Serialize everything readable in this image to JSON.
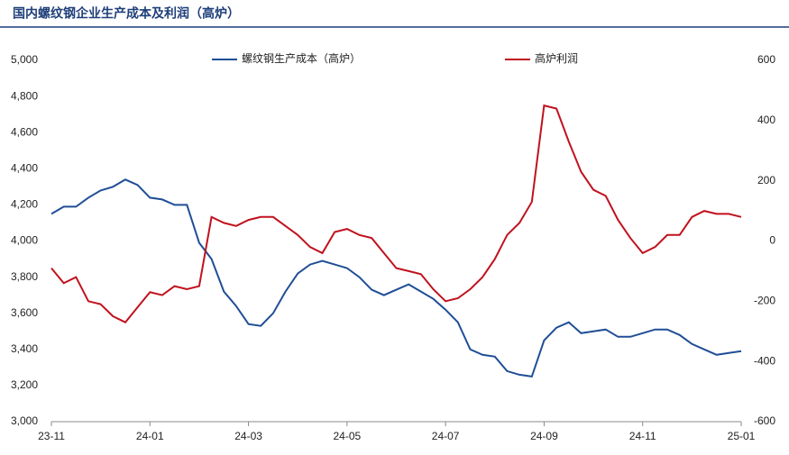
{
  "chart_data": {
    "type": "line",
    "title": "国内螺纹钢企业生产成本及利润（高炉）",
    "categories": [
      "23-11",
      null,
      null,
      null,
      null,
      null,
      null,
      null,
      "24-01",
      null,
      null,
      null,
      null,
      null,
      null,
      null,
      "24-03",
      null,
      null,
      null,
      null,
      null,
      null,
      null,
      "24-05",
      null,
      null,
      null,
      null,
      null,
      null,
      null,
      "24-07",
      null,
      null,
      null,
      null,
      null,
      null,
      null,
      "24-09",
      null,
      null,
      null,
      null,
      null,
      null,
      null,
      "24-11",
      null,
      null,
      null,
      null,
      null,
      null,
      null,
      "25-01"
    ],
    "series": [
      {
        "name": "螺纹钢生产成本（高炉）",
        "color": "#1f4e96",
        "axis": "y",
        "values": [
          4150,
          4190,
          4190,
          4240,
          4280,
          4300,
          4340,
          4310,
          4240,
          4230,
          4200,
          4200,
          3990,
          3900,
          3720,
          3640,
          3540,
          3530,
          3600,
          3720,
          3820,
          3870,
          3890,
          3870,
          3850,
          3800,
          3730,
          3700,
          3730,
          3760,
          3720,
          3680,
          3620,
          3550,
          3400,
          3370,
          3360,
          3280,
          3260,
          3250,
          3450,
          3520,
          3550,
          3490,
          3500,
          3510,
          3470,
          3470,
          3490,
          3510,
          3510,
          3480,
          3430,
          3400,
          3370,
          3380,
          3390
        ]
      },
      {
        "name": "高炉利润",
        "color": "#c0121e",
        "axis": "y2",
        "values": [
          -90,
          -140,
          -120,
          -200,
          -210,
          -250,
          -270,
          -220,
          -170,
          -180,
          -150,
          -160,
          -150,
          80,
          60,
          50,
          70,
          80,
          80,
          50,
          20,
          -20,
          -40,
          30,
          40,
          20,
          10,
          -40,
          -90,
          -100,
          -110,
          -160,
          -200,
          -190,
          -160,
          -120,
          -60,
          20,
          60,
          130,
          450,
          440,
          330,
          230,
          170,
          150,
          70,
          10,
          -40,
          -20,
          20,
          20,
          80,
          100,
          90,
          90,
          80
        ]
      }
    ],
    "ylim": [
      3000,
      5000
    ],
    "yticks": [
      {
        "value": 3000,
        "label": "3,000"
      },
      {
        "value": 3200,
        "label": "3,200"
      },
      {
        "value": 3400,
        "label": "3,400"
      },
      {
        "value": 3600,
        "label": "3,600"
      },
      {
        "value": 3800,
        "label": "3,800"
      },
      {
        "value": 4000,
        "label": "4,000"
      },
      {
        "value": 4200,
        "label": "4,200"
      },
      {
        "value": 4400,
        "label": "4,400"
      },
      {
        "value": 4600,
        "label": "4,600"
      },
      {
        "value": 4800,
        "label": "4,800"
      },
      {
        "value": 5000,
        "label": "5,000"
      }
    ],
    "y2lim": [
      -600,
      600
    ],
    "y2ticks": [
      -600,
      -400,
      -200,
      0,
      200,
      400,
      600
    ],
    "grid": false
  }
}
